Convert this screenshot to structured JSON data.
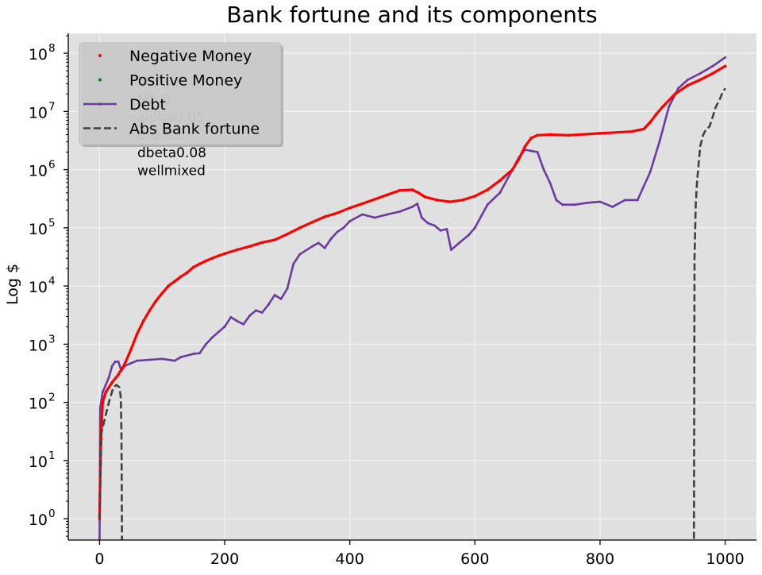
{
  "chart_data": {
    "type": "line",
    "title": "Bank fortune and its components",
    "xlabel": "",
    "ylabel": "Log $",
    "xlim": [
      -50,
      1050
    ],
    "ylim": [
      0.43,
      220000000.0
    ],
    "yscale": "log",
    "grid": true,
    "legend_position": "top-left",
    "x_ticks": [
      0,
      200,
      400,
      600,
      800,
      1000
    ],
    "x_tick_labels": [
      "0",
      "200",
      "400",
      "600",
      "800",
      "1000"
    ],
    "y_ticks": [
      1,
      10,
      100,
      1000,
      10000,
      100000,
      1000000,
      10000000,
      100000000
    ],
    "y_tick_labels": [
      {
        "base": "10",
        "exp": "0"
      },
      {
        "base": "10",
        "exp": "1"
      },
      {
        "base": "10",
        "exp": "2"
      },
      {
        "base": "10",
        "exp": "3"
      },
      {
        "base": "10",
        "exp": "4"
      },
      {
        "base": "10",
        "exp": "5"
      },
      {
        "base": "10",
        "exp": "6"
      },
      {
        "base": "10",
        "exp": "7"
      },
      {
        "base": "10",
        "exp": "8"
      }
    ],
    "annotation_lines": [
      "N500",
      "M5.0",
      "alpha0.05",
      "dr0.05",
      "dbeta0.08",
      "wellmixed"
    ],
    "series": [
      {
        "name": "Negative Money",
        "color": "#ff0000",
        "style": "points",
        "points": [
          [
            0,
            1
          ],
          [
            2,
            20
          ],
          [
            5,
            100
          ],
          [
            10,
            150
          ],
          [
            20,
            220
          ],
          [
            30,
            300
          ],
          [
            40,
            450
          ],
          [
            50,
            800
          ],
          [
            60,
            1500
          ],
          [
            70,
            2500
          ],
          [
            80,
            3800
          ],
          [
            90,
            5500
          ],
          [
            100,
            7500
          ],
          [
            110,
            10000
          ],
          [
            120,
            12000
          ],
          [
            130,
            14500
          ],
          [
            140,
            17000
          ],
          [
            150,
            21000
          ],
          [
            160,
            24000
          ],
          [
            170,
            27000
          ],
          [
            180,
            30000
          ],
          [
            190,
            33000
          ],
          [
            200,
            36000
          ],
          [
            220,
            42000
          ],
          [
            240,
            48000
          ],
          [
            260,
            56000
          ],
          [
            280,
            62000
          ],
          [
            300,
            78000
          ],
          [
            320,
            100000
          ],
          [
            340,
            125000
          ],
          [
            360,
            155000
          ],
          [
            380,
            180000
          ],
          [
            400,
            220000
          ],
          [
            420,
            260000
          ],
          [
            440,
            310000
          ],
          [
            460,
            370000
          ],
          [
            480,
            440000
          ],
          [
            500,
            450000
          ],
          [
            510,
            400000
          ],
          [
            520,
            340000
          ],
          [
            540,
            300000
          ],
          [
            560,
            280000
          ],
          [
            580,
            300000
          ],
          [
            600,
            350000
          ],
          [
            620,
            450000
          ],
          [
            640,
            650000
          ],
          [
            660,
            1000000
          ],
          [
            670,
            1500000
          ],
          [
            680,
            2500000
          ],
          [
            690,
            3500000
          ],
          [
            700,
            3900000
          ],
          [
            720,
            4000000
          ],
          [
            750,
            3900000
          ],
          [
            800,
            4200000
          ],
          [
            850,
            4500000
          ],
          [
            870,
            5000000
          ],
          [
            880,
            6500000
          ],
          [
            890,
            9000000
          ],
          [
            900,
            12000000
          ],
          [
            920,
            20000000
          ],
          [
            940,
            28000000
          ],
          [
            960,
            35000000
          ],
          [
            980,
            45000000
          ],
          [
            1000,
            60000000
          ]
        ]
      },
      {
        "name": "Positive Money",
        "color": "#008000",
        "style": "points",
        "points": []
      },
      {
        "name": "Debt",
        "color": "#6a3ba0",
        "style": "line-points",
        "points": [
          [
            0,
            0.3
          ],
          [
            1,
            80
          ],
          [
            5,
            150
          ],
          [
            10,
            200
          ],
          [
            15,
            270
          ],
          [
            20,
            420
          ],
          [
            25,
            500
          ],
          [
            30,
            500
          ],
          [
            35,
            350
          ],
          [
            40,
            420
          ],
          [
            50,
            470
          ],
          [
            60,
            520
          ],
          [
            80,
            540
          ],
          [
            100,
            560
          ],
          [
            120,
            520
          ],
          [
            130,
            600
          ],
          [
            150,
            680
          ],
          [
            160,
            700
          ],
          [
            170,
            1000
          ],
          [
            180,
            1300
          ],
          [
            200,
            2000
          ],
          [
            210,
            2900
          ],
          [
            220,
            2500
          ],
          [
            230,
            2200
          ],
          [
            240,
            3100
          ],
          [
            250,
            3800
          ],
          [
            260,
            3500
          ],
          [
            270,
            4800
          ],
          [
            280,
            7000
          ],
          [
            290,
            6000
          ],
          [
            300,
            9000
          ],
          [
            310,
            24000
          ],
          [
            320,
            35000
          ],
          [
            340,
            48000
          ],
          [
            350,
            55000
          ],
          [
            360,
            45000
          ],
          [
            370,
            65000
          ],
          [
            380,
            85000
          ],
          [
            390,
            100000
          ],
          [
            400,
            130000
          ],
          [
            420,
            170000
          ],
          [
            440,
            150000
          ],
          [
            460,
            170000
          ],
          [
            480,
            190000
          ],
          [
            500,
            230000
          ],
          [
            508,
            260000
          ],
          [
            515,
            150000
          ],
          [
            525,
            120000
          ],
          [
            535,
            110000
          ],
          [
            545,
            90000
          ],
          [
            555,
            95000
          ],
          [
            562,
            42000
          ],
          [
            575,
            55000
          ],
          [
            590,
            75000
          ],
          [
            600,
            100000
          ],
          [
            620,
            250000
          ],
          [
            640,
            400000
          ],
          [
            660,
            1000000
          ],
          [
            670,
            1600000
          ],
          [
            680,
            2200000
          ],
          [
            690,
            2100000
          ],
          [
            700,
            2000000
          ],
          [
            710,
            1000000
          ],
          [
            720,
            600000
          ],
          [
            730,
            300000
          ],
          [
            740,
            250000
          ],
          [
            760,
            250000
          ],
          [
            780,
            270000
          ],
          [
            800,
            280000
          ],
          [
            820,
            230000
          ],
          [
            840,
            300000
          ],
          [
            860,
            300000
          ],
          [
            880,
            900000
          ],
          [
            895,
            3000000
          ],
          [
            910,
            12000000
          ],
          [
            925,
            25000000
          ],
          [
            940,
            35000000
          ],
          [
            960,
            45000000
          ],
          [
            980,
            60000000
          ],
          [
            1000,
            85000000
          ]
        ]
      },
      {
        "name": "Abs Bank fortune",
        "color": "#404040",
        "style": "dashed",
        "points": [
          [
            0,
            1
          ],
          [
            3,
            30
          ],
          [
            8,
            50
          ],
          [
            15,
            100
          ],
          [
            22,
            180
          ],
          [
            27,
            200
          ],
          [
            32,
            180
          ],
          [
            34,
            120
          ],
          [
            35,
            30
          ],
          [
            36,
            0.3
          ],
          [
            null,
            null
          ],
          [
            950,
            0.3
          ],
          [
            951,
            30000
          ],
          [
            953,
            250000
          ],
          [
            955,
            600000
          ],
          [
            960,
            2500000
          ],
          [
            965,
            4000000
          ],
          [
            970,
            5000000
          ],
          [
            975,
            5500000
          ],
          [
            980,
            8000000
          ],
          [
            985,
            12000000
          ],
          [
            990,
            15000000
          ],
          [
            995,
            20000000
          ],
          [
            1000,
            25000000
          ]
        ]
      }
    ]
  }
}
